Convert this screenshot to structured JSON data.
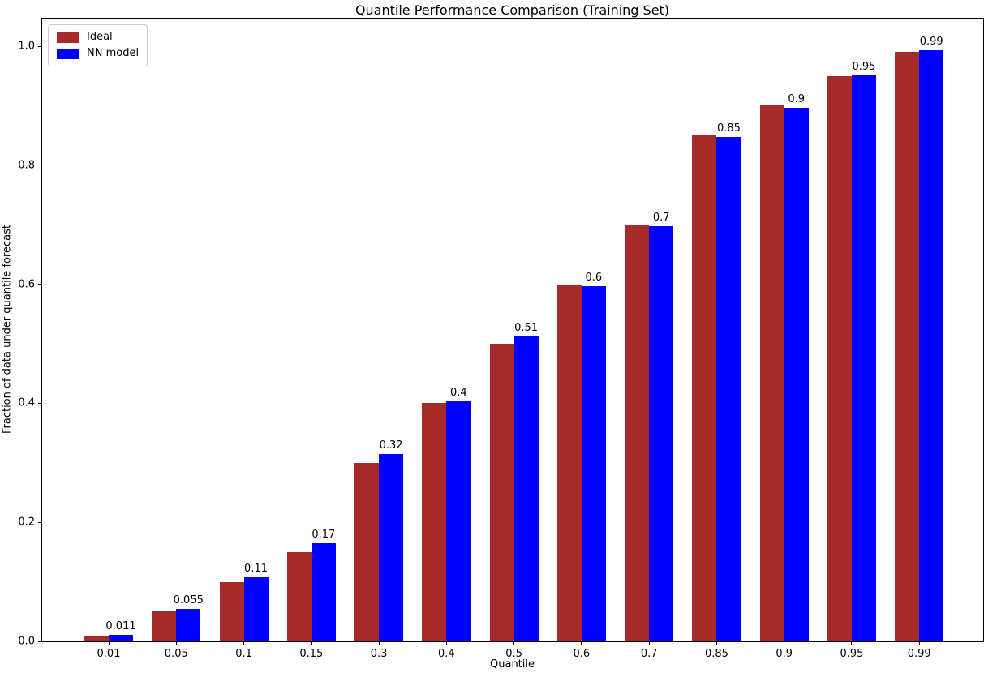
{
  "chart_data": {
    "type": "bar",
    "title": "Quantile Performance Comparison (Training Set)",
    "xlabel": "Quantile",
    "ylabel": "Fraction of data under quantile forecast",
    "categories": [
      "0.01",
      "0.05",
      "0.1",
      "0.15",
      "0.3",
      "0.4",
      "0.5",
      "0.6",
      "0.7",
      "0.85",
      "0.9",
      "0.95",
      "0.99"
    ],
    "series": [
      {
        "name": "Ideal",
        "color": "#A52A2A",
        "values": [
          0.01,
          0.05,
          0.1,
          0.15,
          0.3,
          0.4,
          0.5,
          0.6,
          0.7,
          0.85,
          0.9,
          0.95,
          0.99
        ]
      },
      {
        "name": "NN model",
        "color": "#0000FF",
        "values": [
          0.011,
          0.055,
          0.108,
          0.165,
          0.315,
          0.403,
          0.512,
          0.597,
          0.698,
          0.848,
          0.897,
          0.951,
          0.993
        ],
        "bar_labels": [
          "0.011",
          "0.055",
          "0.11",
          "0.17",
          "0.32",
          "0.4",
          "0.51",
          "0.6",
          "0.7",
          "0.85",
          "0.9",
          "0.95",
          "0.99"
        ]
      }
    ],
    "y_ticks": [
      "0.0",
      "0.2",
      "0.4",
      "0.6",
      "0.8",
      "1.0"
    ],
    "ylim": [
      0,
      1.046
    ],
    "grid": false,
    "legend_position": "upper left",
    "bar_label_color": "#000000",
    "axis_color": "#000000"
  }
}
